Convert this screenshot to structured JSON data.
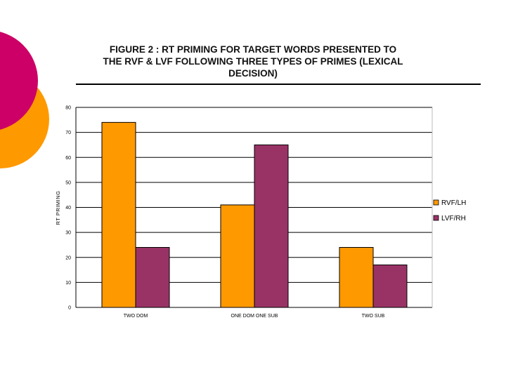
{
  "colors": {
    "deco_magenta": "#cc0066",
    "deco_orange": "#ff9900",
    "rvf": "#ff9900",
    "lvf": "#993366"
  },
  "chart_data": {
    "type": "bar",
    "title": "FIGURE 2  : RT PRIMING FOR TARGET WORDS PRESENTED TO THE RVF & LVF FOLLOWING THREE TYPES OF PRIMES (LEXICAL DECISION)",
    "title_lines": [
      "FIGURE 2  : RT PRIMING FOR TARGET WORDS PRESENTED TO",
      "THE RVF & LVF FOLLOWING THREE TYPES OF PRIMES (LEXICAL",
      "DECISION)"
    ],
    "xlabel": "",
    "ylabel": "RT PRIMING",
    "ylim": [
      0,
      80
    ],
    "yticks": [
      0,
      10,
      20,
      30,
      40,
      50,
      60,
      70,
      80
    ],
    "grid": true,
    "legend": "right",
    "categories": [
      "TWO DOM",
      "ONE DOM ONE SUB",
      "TWO SUB"
    ],
    "series": [
      {
        "name": "RVF/LH",
        "values": [
          74,
          41,
          24
        ],
        "color": "#ff9900"
      },
      {
        "name": "LVF/RH",
        "values": [
          24,
          65,
          17
        ],
        "color": "#993366"
      }
    ]
  }
}
